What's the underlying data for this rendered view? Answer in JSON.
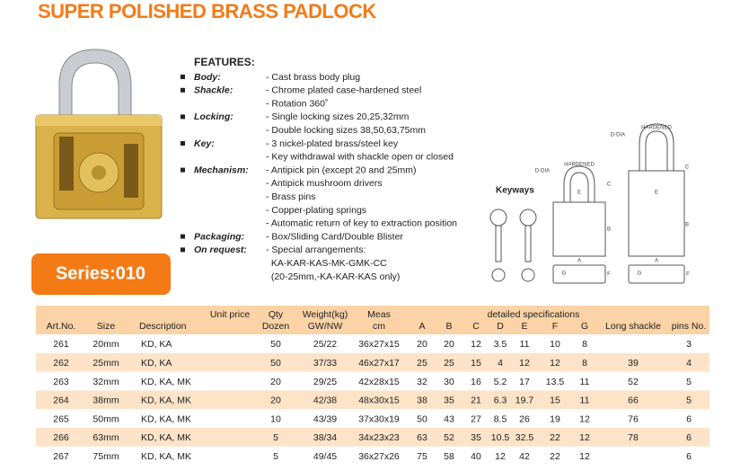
{
  "header": {
    "title": "SUPER POLISHED BRASS PADLOCK"
  },
  "series_badge": "Series:010",
  "features": {
    "heading": "FEATURES:",
    "items": [
      {
        "label": "Body:",
        "lines": [
          "- Cast brass body plug"
        ]
      },
      {
        "label": "Shackle:",
        "lines": [
          "- Chrome plated case-hardened steel",
          "- Rotation 360˚"
        ]
      },
      {
        "label": "Locking:",
        "lines": [
          "- Single locking sizes 20,25,32mm",
          "- Double locking sizes 38,50,63,75mm"
        ]
      },
      {
        "label": "Key:",
        "lines": [
          "- 3 nickel-plated brass/steel key",
          "- Key withdrawal with shackle open or closed"
        ]
      },
      {
        "label": "Mechanism:",
        "lines": [
          "- Antipick pin (except 20 and 25mm)",
          "- Antipick mushroom drivers",
          "- Brass pins",
          "- Copper-plating springs",
          "- Automatic return of key to extraction position"
        ]
      },
      {
        "label": "Packaging:",
        "lines": [
          "- Box/Sliding Card/Double Blister"
        ]
      },
      {
        "label": "On request:",
        "lines": [
          "- Special arrangements:",
          "  KA-KAR-KAS-MK-GMK-CC",
          "  (20-25mm,-KA-KAR-KAS only)"
        ]
      }
    ]
  },
  "keyways": "Keyways",
  "diagrams": {
    "short": [
      "D-DIA",
      "HARDENED",
      "E",
      "C",
      "B",
      "A",
      "G",
      "F"
    ],
    "long": [
      "D-DIA",
      "HARDENED",
      "E",
      "C",
      "B",
      "A",
      "G",
      "F"
    ]
  },
  "table": {
    "header_top": [
      "Unit price",
      "Qty",
      "Weight(kg)",
      "Meas",
      "detailed specifications"
    ],
    "header_bottom": [
      "Art.No.",
      "Size",
      "Description",
      "Dozen",
      "GW/NW",
      "cm",
      "A",
      "B",
      "C",
      "D",
      "E",
      "F",
      "G",
      "Long shackle",
      "pins No."
    ],
    "rows": [
      [
        "261",
        "20mm",
        "KD, KA",
        "50",
        "25/22",
        "36x27x15",
        "20",
        "20",
        "12",
        "3.5",
        "11",
        "10",
        "8",
        null,
        "3"
      ],
      [
        "262",
        "25mm",
        "KD, KA",
        "50",
        "37/33",
        "46x27x17",
        "25",
        "25",
        "15",
        "4",
        "12",
        "12",
        "8",
        "39",
        "4"
      ],
      [
        "263",
        "32mm",
        "KD, KA, MK",
        "20",
        "29/25",
        "42x28x15",
        "32",
        "30",
        "16",
        "5.2",
        "17",
        "13.5",
        "11",
        "52",
        "5"
      ],
      [
        "264",
        "38mm",
        "KD, KA, MK",
        "20",
        "42/38",
        "48x30x15",
        "38",
        "35",
        "21",
        "6.3",
        "19.7",
        "15",
        "11",
        "66",
        "5"
      ],
      [
        "265",
        "50mm",
        "KD, KA, MK",
        "10",
        "43/39",
        "37x30x19",
        "50",
        "43",
        "27",
        "8.5",
        "26",
        "19",
        "12",
        "76",
        "6"
      ],
      [
        "266",
        "63mm",
        "KD, KA, MK",
        "5",
        "38/34",
        "34x23x23",
        "63",
        "52",
        "35",
        "10.5",
        "32.5",
        "22",
        "12",
        "78",
        "6"
      ],
      [
        "267",
        "75mm",
        "KD, KA, MK",
        "5",
        "49/45",
        "36x27x26",
        "75",
        "58",
        "40",
        "12",
        "42",
        "22",
        "12",
        null,
        "6"
      ]
    ]
  }
}
